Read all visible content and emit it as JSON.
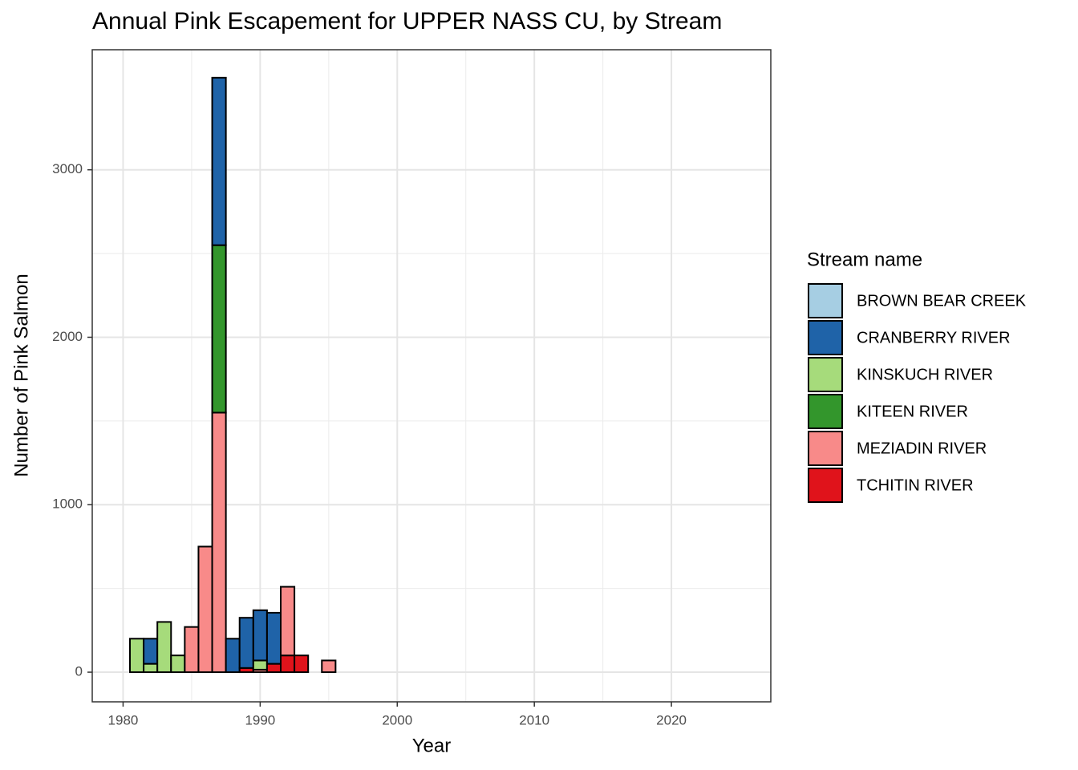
{
  "chart_data": {
    "type": "bar",
    "stacked": true,
    "title": "Annual Pink Escapement for UPPER NASS CU, by Stream",
    "x_label": "Year",
    "y_label": "Number of Pink Salmon",
    "legend_title": "Stream name",
    "x": [
      1981,
      1982,
      1983,
      1984,
      1985,
      1986,
      1987,
      1988,
      1989,
      1990,
      1991,
      1992,
      1993,
      1995,
      2001,
      2003,
      2011,
      2017
    ],
    "series": [
      {
        "name": "BROWN BEAR CREEK",
        "color": "#a6cee3",
        "values": [
          null,
          null,
          null,
          null,
          null,
          null,
          null,
          null,
          null,
          null,
          null,
          null,
          null,
          null,
          null,
          null,
          null,
          null
        ]
      },
      {
        "name": "CRANBERRY RIVER",
        "color": "#1f63a8",
        "values": [
          null,
          150,
          null,
          null,
          null,
          null,
          1000,
          200,
          300,
          300,
          305,
          null,
          null,
          null,
          null,
          null,
          null,
          null
        ]
      },
      {
        "name": "KINSKUCH RIVER",
        "color": "#a6db7b",
        "values": [
          200,
          50,
          300,
          100,
          null,
          null,
          null,
          null,
          null,
          55,
          null,
          null,
          null,
          null,
          null,
          null,
          null,
          null
        ]
      },
      {
        "name": "KITEEN RIVER",
        "color": "#33962c",
        "values": [
          null,
          null,
          null,
          null,
          null,
          null,
          1000,
          null,
          null,
          null,
          null,
          null,
          null,
          null,
          null,
          null,
          null,
          null
        ]
      },
      {
        "name": "MEZIADIN RIVER",
        "color": "#f88a89",
        "values": [
          null,
          null,
          null,
          null,
          270,
          750,
          1550,
          null,
          null,
          15,
          null,
          410,
          null,
          70,
          0,
          0,
          0,
          0
        ]
      },
      {
        "name": "TCHITIN RIVER",
        "color": "#e0131b",
        "values": [
          null,
          null,
          null,
          null,
          null,
          null,
          null,
          null,
          25,
          null,
          50,
          100,
          100,
          null,
          null,
          null,
          null,
          null
        ]
      }
    ],
    "xlim": [
      1977.75,
      2027.25
    ],
    "xticks": [
      1980,
      1990,
      2000,
      2010,
      2020
    ],
    "ylim": [
      -177,
      3717
    ],
    "yticks": [
      0,
      1000,
      2000,
      3000
    ],
    "grid": true,
    "legend": "right"
  }
}
